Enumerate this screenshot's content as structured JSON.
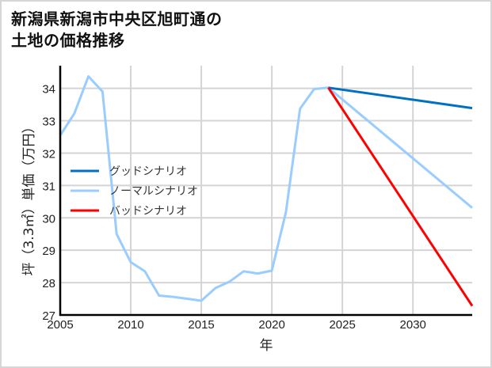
{
  "title": "新潟県新潟市中央区旭町通の\n土地の価格推移",
  "colors": {
    "good": "#0070c0",
    "normal": "#99ccff",
    "bad": "#ff0000",
    "grid": "#d4d4d4",
    "axis": "#000000"
  },
  "chart_data": {
    "type": "line",
    "title": "新潟県新潟市中央区旭町通の土地の価格推移",
    "xlabel": "年",
    "ylabel": "坪（3.3㎡）単価（万円）",
    "xlim": [
      2005,
      2034.2
    ],
    "ylim": [
      27,
      34.7
    ],
    "xticks": [
      2005,
      2010,
      2015,
      2020,
      2025,
      2030
    ],
    "yticks": [
      27,
      28,
      29,
      30,
      31,
      32,
      33,
      34
    ],
    "grid": true,
    "legend_position": "left-center",
    "series": [
      {
        "name": "グッドシナリオ",
        "color": "#0070c0",
        "x": [
          2024,
          2034.2
        ],
        "values": [
          34.02,
          33.39
        ]
      },
      {
        "name": "ノーマルシナリオ",
        "color": "#99ccff",
        "x": [
          2005,
          2006,
          2007,
          2008,
          2009,
          2010,
          2011,
          2012,
          2013,
          2014,
          2015,
          2016,
          2017,
          2018,
          2019,
          2020,
          2021,
          2022,
          2023,
          2024,
          2034.2
        ],
        "values": [
          32.55,
          33.22,
          34.37,
          33.9,
          29.5,
          28.63,
          28.35,
          27.6,
          27.56,
          27.5,
          27.44,
          27.83,
          28.03,
          28.35,
          28.28,
          28.37,
          30.18,
          33.37,
          33.98,
          34.02,
          30.31
        ]
      },
      {
        "name": "バッドシナリオ",
        "color": "#ff0000",
        "x": [
          2024,
          2034.2
        ],
        "values": [
          34.02,
          27.28
        ]
      }
    ]
  }
}
